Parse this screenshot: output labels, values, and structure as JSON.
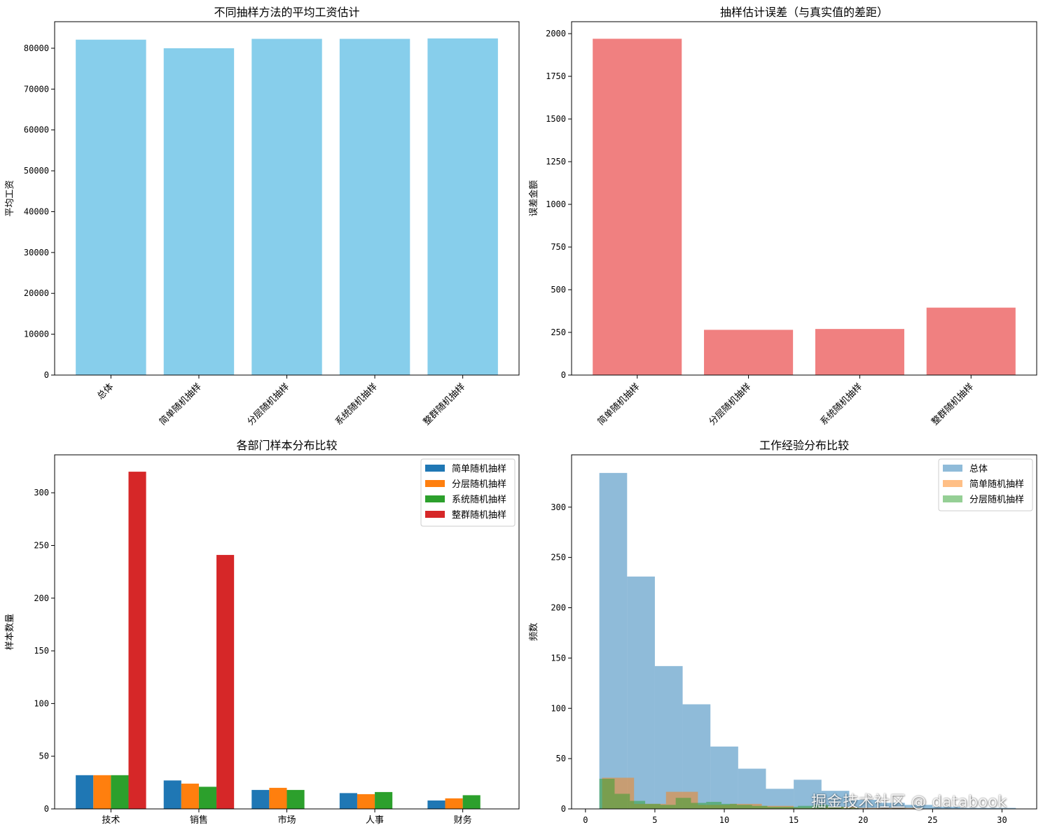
{
  "watermark": "掘金技术社区 @ databook",
  "chart_data": [
    {
      "type": "bar",
      "title": "不同抽样方法的平均工资估计",
      "ylabel": "平均工资",
      "xlabel": "",
      "categories": [
        "总体",
        "简单随机抽样",
        "分层随机抽样",
        "系统随机抽样",
        "整群随机抽样"
      ],
      "values": [
        82100,
        80000,
        82300,
        82300,
        82400
      ],
      "ylim": [
        0,
        86500
      ],
      "yticks": [
        0,
        10000,
        20000,
        30000,
        40000,
        50000,
        60000,
        70000,
        80000
      ],
      "color": "#87ceeb",
      "grid": false,
      "xtick_rotation": 45
    },
    {
      "type": "bar",
      "title": "抽样估计误差（与真实值的差距）",
      "ylabel": "误差金额",
      "xlabel": "",
      "categories": [
        "简单随机抽样",
        "分层随机抽样",
        "系统随机抽样",
        "整群随机抽样"
      ],
      "values": [
        1970,
        265,
        270,
        395
      ],
      "ylim": [
        0,
        2070
      ],
      "yticks": [
        0,
        250,
        500,
        750,
        1000,
        1250,
        1500,
        1750,
        2000
      ],
      "color": "#f08080",
      "grid": false,
      "xtick_rotation": 45
    },
    {
      "type": "bar",
      "title": "各部门样本分布比较",
      "ylabel": "样本数量",
      "xlabel": "",
      "categories": [
        "技术",
        "销售",
        "市场",
        "人事",
        "财务"
      ],
      "series": [
        {
          "name": "简单随机抽样",
          "values": [
            32,
            27,
            18,
            15,
            8
          ],
          "color": "#1f77b4"
        },
        {
          "name": "分层随机抽样",
          "values": [
            32,
            24,
            20,
            14,
            10
          ],
          "color": "#ff7f0e"
        },
        {
          "name": "系统随机抽样",
          "values": [
            32,
            21,
            18,
            16,
            13
          ],
          "color": "#2ca02c"
        },
        {
          "name": "整群随机抽样",
          "values": [
            320,
            241,
            0,
            0,
            0
          ],
          "color": "#d62728"
        }
      ],
      "ylim": [
        0,
        336
      ],
      "yticks": [
        0,
        50,
        100,
        150,
        200,
        250,
        300
      ],
      "legend": "top-right",
      "grid": false
    },
    {
      "type": "histogram",
      "title": "工作经验分布比较",
      "ylabel": "频数",
      "xlabel": "",
      "xlim": [
        -1,
        32.5
      ],
      "ylim": [
        0,
        352
      ],
      "xticks": [
        0,
        5,
        10,
        15,
        20,
        25,
        30
      ],
      "yticks": [
        0,
        50,
        100,
        150,
        200,
        250,
        300
      ],
      "legend": "top-right",
      "alpha": 0.5,
      "grid": false,
      "series": [
        {
          "name": "总体",
          "color": "#1f77b4",
          "bin_edges": [
            1,
            3,
            5,
            7,
            9,
            11,
            13,
            15,
            17,
            19,
            21,
            23,
            25,
            27,
            29,
            31
          ],
          "counts": [
            334,
            231,
            142,
            104,
            62,
            40,
            20,
            29,
            18,
            9,
            6,
            4,
            2,
            1,
            1
          ]
        },
        {
          "name": "简单随机抽样",
          "color": "#ff7f0e",
          "bin_edges": [
            1.2,
            3.5,
            5.8,
            8.1,
            10.4,
            12.7,
            15.0,
            17.3,
            19.6,
            21.9,
            24.2
          ],
          "counts": [
            31,
            5,
            17,
            4,
            5,
            3,
            1,
            2,
            1,
            1
          ]
        },
        {
          "name": "分层随机抽样",
          "color": "#2ca02c",
          "bin_edges": [
            1,
            2.1,
            3.2,
            4.3,
            5.4,
            6.5,
            7.6,
            8.7,
            9.8,
            10.9,
            12.0,
            13.1,
            14.2,
            15.3,
            16.4,
            17.5,
            18.6,
            19.7
          ],
          "counts": [
            30,
            15,
            8,
            5,
            4,
            11,
            6,
            7,
            5,
            4,
            3,
            2,
            2,
            3,
            4,
            2,
            1
          ]
        }
      ]
    }
  ]
}
